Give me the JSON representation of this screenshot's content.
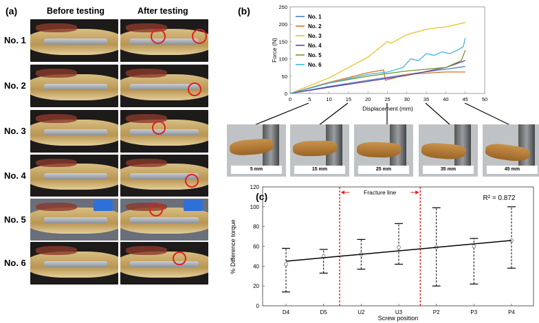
{
  "panel_a": {
    "label": "(a)",
    "col_before": "Before testing",
    "col_after": "After testing",
    "rows": [
      "No. 1",
      "No. 2",
      "No. 3",
      "No. 4",
      "No. 5",
      "No. 6"
    ]
  },
  "panel_b": {
    "label": "(b)",
    "frames": [
      "5 mm",
      "15 mm",
      "25 mm",
      "35 mm",
      "45 mm"
    ]
  },
  "panel_c": {
    "label": "(c)",
    "fracture_label": "Fracture line",
    "r2_label": "R² = 0.872"
  },
  "colors": {
    "No. 1": "#4a7fbf",
    "No. 2": "#d9702a",
    "No. 3": "#e8c22a",
    "No. 4": "#6a3d9a",
    "No. 5": "#6b9a2e",
    "No. 6": "#3fb4e0"
  },
  "chart_data": [
    {
      "type": "line",
      "title": "",
      "xlabel": "Displacement (mm)",
      "ylabel": "Force (N)",
      "xlim": [
        0,
        50
      ],
      "ylim": [
        0,
        250
      ],
      "xticks": [
        0,
        5,
        10,
        15,
        20,
        25,
        30,
        35,
        40,
        45,
        50
      ],
      "yticks": [
        0,
        50,
        100,
        150,
        200,
        250
      ],
      "legend": "top-left",
      "series": [
        {
          "name": "No. 1",
          "x": [
            0,
            10,
            20,
            30,
            40,
            45
          ],
          "y": [
            0,
            20,
            38,
            55,
            70,
            78
          ]
        },
        {
          "name": "No. 2",
          "x": [
            0,
            10,
            20,
            24,
            24.5,
            30,
            40,
            45
          ],
          "y": [
            0,
            32,
            60,
            68,
            38,
            55,
            62,
            62
          ]
        },
        {
          "name": "No. 3",
          "x": [
            0,
            10,
            20,
            25,
            26,
            30,
            35,
            38,
            40,
            45
          ],
          "y": [
            0,
            45,
            105,
            150,
            145,
            170,
            185,
            190,
            192,
            205
          ]
        },
        {
          "name": "No. 4",
          "x": [
            0,
            10,
            20,
            30,
            40,
            45
          ],
          "y": [
            0,
            18,
            35,
            52,
            75,
            95
          ]
        },
        {
          "name": "No. 5",
          "x": [
            0,
            10,
            20,
            30,
            40,
            44,
            45
          ],
          "y": [
            0,
            30,
            50,
            65,
            75,
            95,
            125
          ]
        },
        {
          "name": "No. 6",
          "x": [
            0,
            10,
            20,
            25,
            29,
            31,
            33,
            35,
            37,
            39,
            41,
            43,
            44.5,
            45
          ],
          "y": [
            0,
            30,
            55,
            62,
            75,
            100,
            95,
            115,
            110,
            120,
            115,
            125,
            135,
            160
          ]
        }
      ]
    },
    {
      "type": "scatter",
      "title": "",
      "xlabel": "Screw position",
      "ylabel": "% Difference torque",
      "categories": [
        "D4",
        "D5",
        "U2",
        "U3",
        "P2",
        "P3",
        "P4"
      ],
      "ylim": [
        0,
        120
      ],
      "yticks": [
        0,
        20,
        40,
        60,
        80,
        100,
        120
      ],
      "means": [
        42,
        50,
        52,
        59,
        59,
        60,
        66
      ],
      "lower": [
        14,
        33,
        37,
        42,
        20,
        22,
        38
      ],
      "upper": [
        58,
        57,
        67,
        83,
        99,
        68,
        100
      ],
      "fit": {
        "start": 45,
        "end": 66
      },
      "fracture_between": [
        "D5",
        "U2",
        "U3",
        "P2"
      ]
    }
  ]
}
